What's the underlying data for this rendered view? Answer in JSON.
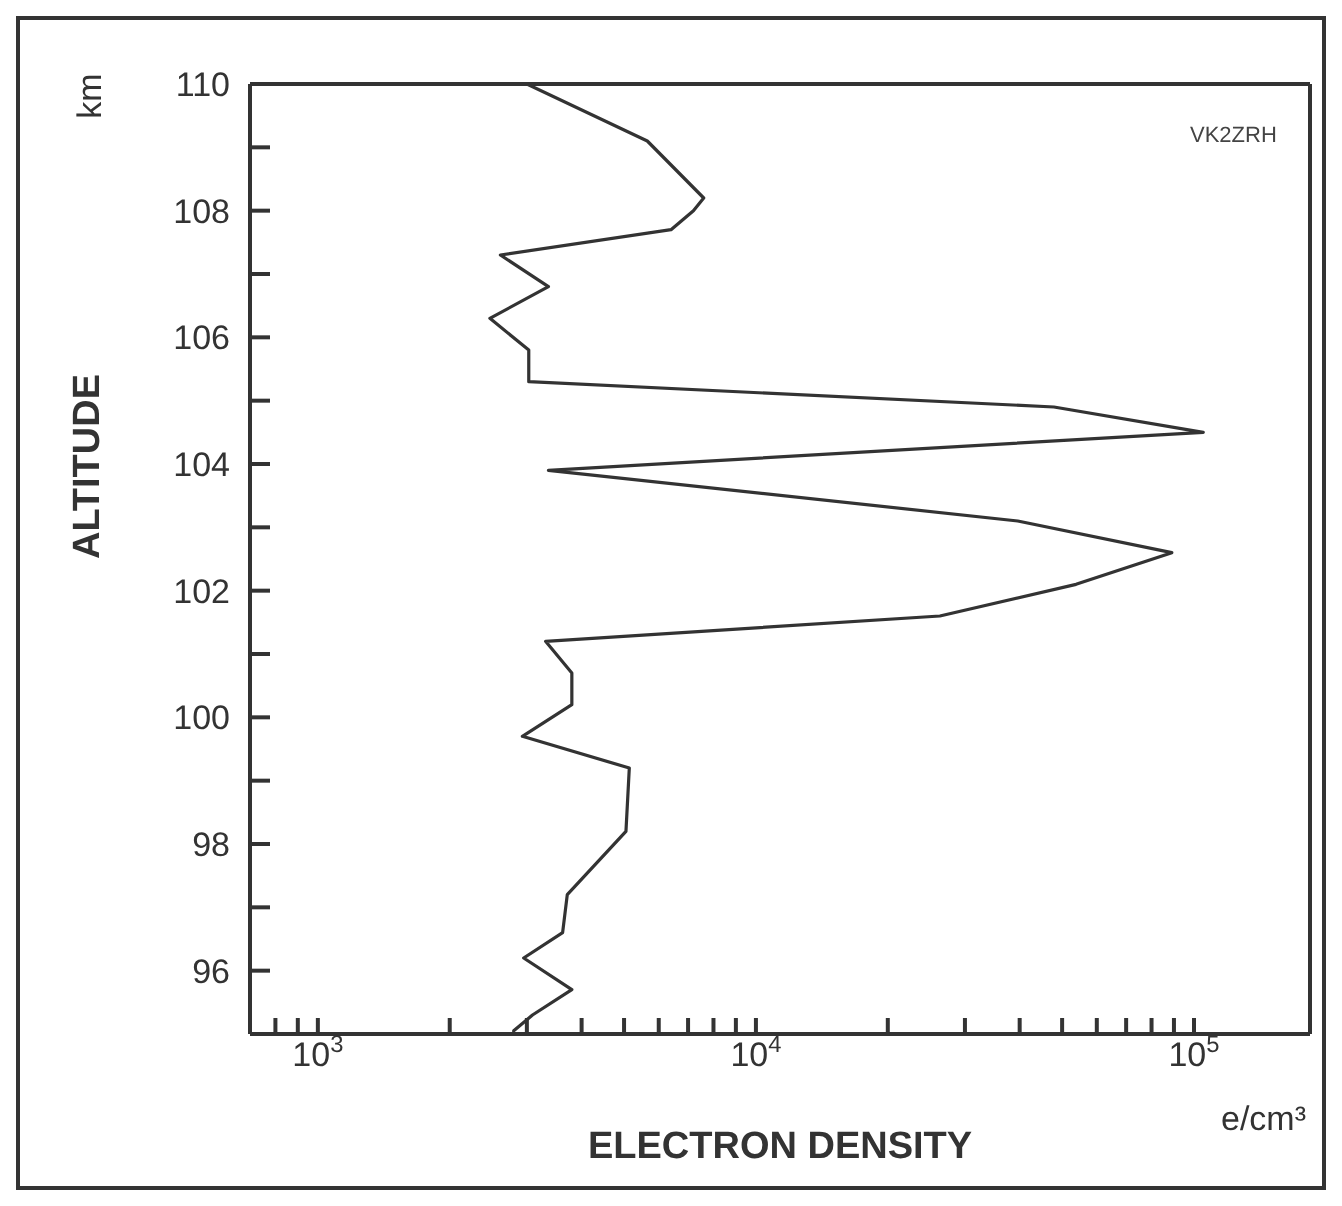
{
  "chart_data": {
    "type": "line",
    "xlabel": "ELECTRON DENSITY",
    "ylabel": "ALTITUDE",
    "annotations": [
      "km",
      "e/cm³",
      "VK2ZRH"
    ],
    "log": "x",
    "xlim": [
      700,
      184000
    ],
    "ylim": [
      95,
      110
    ],
    "xticks": [
      {
        "value": 700,
        "label": null
      },
      {
        "value": 800,
        "label": null
      },
      {
        "value": 900,
        "label": null
      },
      {
        "value": 1000,
        "label": "10$^{3}$"
      },
      {
        "value": 2000,
        "label": null
      },
      {
        "value": 3000,
        "label": null
      },
      {
        "value": 4000,
        "label": null
      },
      {
        "value": 5000,
        "label": null
      },
      {
        "value": 6000,
        "label": null
      },
      {
        "value": 7000,
        "label": null
      },
      {
        "value": 8000,
        "label": null
      },
      {
        "value": 9000,
        "label": null
      },
      {
        "value": 10000,
        "label": "10$^{4}$"
      },
      {
        "value": 20000,
        "label": null
      },
      {
        "value": 30000,
        "label": null
      },
      {
        "value": 40000,
        "label": null
      },
      {
        "value": 50000,
        "label": null
      },
      {
        "value": 60000,
        "label": null
      },
      {
        "value": 70000,
        "label": null
      },
      {
        "value": 80000,
        "label": null
      },
      {
        "value": 90000,
        "label": null
      },
      {
        "value": 100000,
        "label": "10$^{5}$"
      }
    ],
    "yticks": [
      {
        "value": 95,
        "label": null
      },
      96,
      {
        "value": 97,
        "label": null
      },
      98,
      {
        "value": 99,
        "label": null
      },
      100,
      {
        "value": 101,
        "label": null
      },
      102,
      {
        "value": 103,
        "label": null
      },
      104,
      {
        "value": 105,
        "label": null
      },
      106,
      {
        "value": 107,
        "label": null
      },
      108,
      {
        "value": 109,
        "label": null
      },
      110
    ],
    "marker": "none",
    "line_style": "solid",
    "series": [
      {
        "color": "#333333",
        "x": [
          3000,
          5650,
          7600,
          7200,
          6400,
          2610,
          3360,
          2470,
          3030,
          3030,
          47900,
          105000,
          3360,
          39600,
          89000,
          53800,
          26300,
          3310,
          3800,
          3800,
          2930,
          5140,
          5050,
          3710,
          3620,
          2950,
          3800,
          3090,
          2800,
          2800
        ],
        "values": [
          110,
          109.1,
          108.2,
          108.0,
          107.7,
          107.3,
          106.8,
          106.3,
          105.8,
          105.3,
          104.9,
          104.5,
          103.9,
          103.1,
          102.6,
          102.1,
          101.6,
          101.2,
          100.7,
          100.2,
          99.7,
          99.2,
          98.2,
          97.2,
          96.6,
          96.2,
          95.7,
          95.3,
          95.05,
          95
        ]
      }
    ]
  }
}
